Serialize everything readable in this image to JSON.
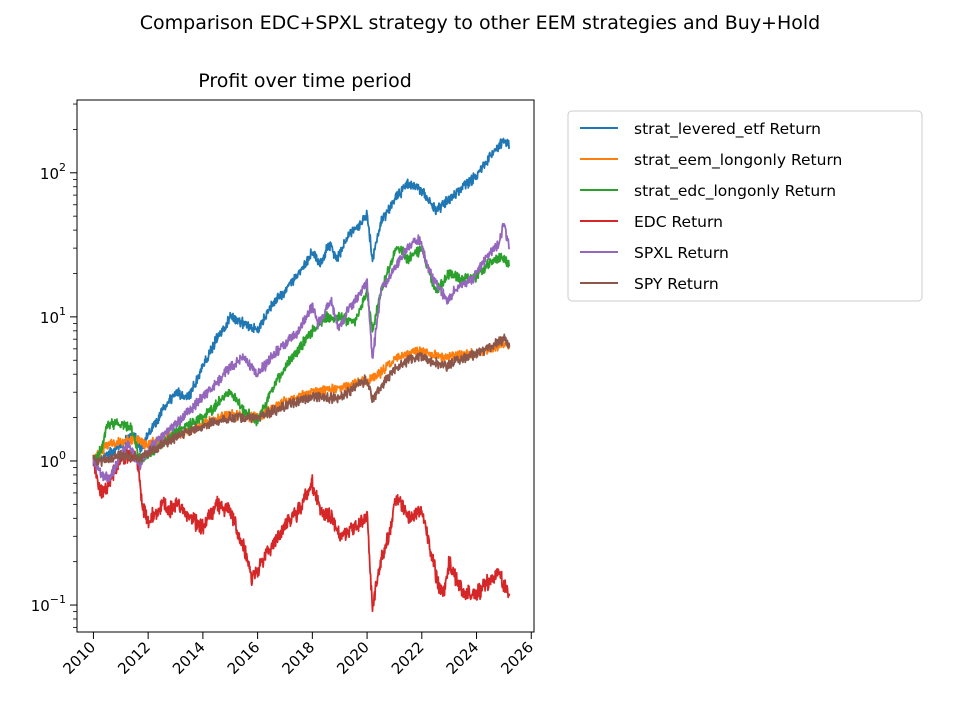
{
  "suptitle": "Comparison EDC+SPXL strategy to other EEM strategies and Buy+Hold",
  "chart_data": {
    "type": "line",
    "title": "Profit over time period",
    "xlabel": "",
    "ylabel": "",
    "yscale": "log",
    "xlim": [
      2009.4,
      2026.1
    ],
    "ylim": [
      0.065,
      320
    ],
    "x_ticks": [
      "2010",
      "2012",
      "2014",
      "2016",
      "2018",
      "2020",
      "2022",
      "2024",
      "2026"
    ],
    "x_tick_rotation": 45,
    "y_ticks": [
      {
        "value": 100,
        "base": "10",
        "exp": "2"
      },
      {
        "value": 10,
        "base": "10",
        "exp": "1"
      },
      {
        "value": 1,
        "base": "10",
        "exp": "0"
      },
      {
        "value": 0.1,
        "base": "10",
        "exp": "−1"
      }
    ],
    "grid": false,
    "legend_position": "outside-right",
    "series": [
      {
        "name": "strat_levered_etf Return",
        "color": "#1f77b4",
        "x": [
          2010.0,
          2010.5,
          2011.0,
          2011.5,
          2011.7,
          2012.0,
          2012.5,
          2013.0,
          2013.5,
          2014.0,
          2014.5,
          2015.0,
          2015.5,
          2016.0,
          2016.5,
          2017.0,
          2017.5,
          2018.0,
          2018.3,
          2018.6,
          2018.9,
          2019.3,
          2019.8,
          2020.0,
          2020.2,
          2020.5,
          2021.0,
          2021.5,
          2022.0,
          2022.5,
          2023.0,
          2023.5,
          2024.0,
          2024.5,
          2025.0,
          2025.2
        ],
        "y": [
          1.0,
          1.1,
          1.3,
          1.5,
          1.2,
          1.5,
          2.2,
          3.0,
          2.8,
          4.5,
          7.0,
          10.0,
          9.0,
          8.0,
          12.0,
          15.0,
          20.0,
          28.0,
          23.0,
          32.0,
          25.0,
          36.0,
          45.0,
          52.0,
          25.0,
          45.0,
          65.0,
          85.0,
          75.0,
          55.0,
          65.0,
          80.0,
          95.0,
          130.0,
          170.0,
          150.0
        ]
      },
      {
        "name": "strat_eem_longonly Return",
        "color": "#ff7f0e",
        "x": [
          2010.0,
          2010.5,
          2011.0,
          2011.5,
          2012.0,
          2013.0,
          2014.0,
          2015.0,
          2016.0,
          2017.0,
          2018.0,
          2019.0,
          2020.0,
          2020.3,
          2021.0,
          2021.5,
          2022.0,
          2022.5,
          2023.0,
          2024.0,
          2025.0,
          2025.2
        ],
        "y": [
          1.0,
          1.3,
          1.35,
          1.4,
          1.3,
          1.5,
          1.8,
          2.1,
          2.0,
          2.6,
          3.0,
          3.2,
          3.6,
          3.8,
          5.0,
          5.6,
          5.8,
          5.4,
          5.3,
          5.6,
          6.5,
          6.3
        ]
      },
      {
        "name": "strat_edc_longonly Return",
        "color": "#2ca02c",
        "x": [
          2010.0,
          2010.3,
          2010.5,
          2011.0,
          2011.4,
          2011.7,
          2012.0,
          2012.5,
          2013.0,
          2014.0,
          2015.0,
          2015.5,
          2016.0,
          2016.5,
          2017.0,
          2017.5,
          2018.0,
          2018.5,
          2019.0,
          2019.5,
          2020.0,
          2020.2,
          2020.5,
          2021.0,
          2021.2,
          2021.5,
          2022.0,
          2022.5,
          2023.0,
          2023.5,
          2024.0,
          2024.5,
          2025.0,
          2025.2
        ],
        "y": [
          1.0,
          1.2,
          1.8,
          1.8,
          1.7,
          1.0,
          1.1,
          1.3,
          1.6,
          2.0,
          3.0,
          2.2,
          1.9,
          3.0,
          4.5,
          6.0,
          8.0,
          10.0,
          10.0,
          9.0,
          15.0,
          8.0,
          15.0,
          28.0,
          30.0,
          25.0,
          30.0,
          15.0,
          20.0,
          18.0,
          19.0,
          24.0,
          26.0,
          23.0
        ]
      },
      {
        "name": "EDC Return",
        "color": "#d62728",
        "x": [
          2010.0,
          2010.2,
          2010.4,
          2010.7,
          2011.0,
          2011.3,
          2011.6,
          2011.8,
          2012.0,
          2012.3,
          2012.5,
          2012.8,
          2013.0,
          2013.3,
          2013.5,
          2014.0,
          2014.5,
          2015.0,
          2015.5,
          2015.8,
          2016.0,
          2016.5,
          2017.0,
          2017.5,
          2018.0,
          2018.3,
          2018.7,
          2019.0,
          2019.5,
          2020.0,
          2020.2,
          2020.5,
          2020.8,
          2021.0,
          2021.2,
          2021.5,
          2022.0,
          2022.3,
          2022.6,
          2022.8,
          2023.0,
          2023.5,
          2024.0,
          2024.5,
          2024.8,
          2025.0,
          2025.2
        ],
        "y": [
          1.0,
          0.65,
          0.6,
          0.8,
          1.05,
          1.1,
          1.0,
          0.5,
          0.38,
          0.45,
          0.5,
          0.45,
          0.5,
          0.45,
          0.4,
          0.35,
          0.5,
          0.45,
          0.25,
          0.15,
          0.18,
          0.25,
          0.35,
          0.45,
          0.7,
          0.45,
          0.4,
          0.3,
          0.35,
          0.4,
          0.1,
          0.2,
          0.3,
          0.5,
          0.55,
          0.4,
          0.45,
          0.25,
          0.14,
          0.12,
          0.2,
          0.12,
          0.12,
          0.15,
          0.17,
          0.14,
          0.12
        ]
      },
      {
        "name": "SPXL Return",
        "color": "#9467bd",
        "x": [
          2010.0,
          2010.3,
          2010.6,
          2011.0,
          2011.3,
          2011.7,
          2012.0,
          2012.5,
          2013.0,
          2013.5,
          2014.0,
          2014.5,
          2015.0,
          2015.5,
          2015.8,
          2016.0,
          2016.5,
          2017.0,
          2017.5,
          2018.0,
          2018.2,
          2018.7,
          2018.95,
          2019.3,
          2019.8,
          2020.0,
          2020.2,
          2020.5,
          2021.0,
          2021.5,
          2021.9,
          2022.3,
          2022.7,
          2022.95,
          2023.3,
          2023.8,
          2024.0,
          2024.5,
          2024.8,
          2025.0,
          2025.2
        ],
        "y": [
          1.0,
          0.8,
          0.75,
          1.1,
          1.3,
          0.9,
          1.2,
          1.5,
          1.8,
          2.2,
          2.8,
          3.5,
          4.5,
          5.2,
          4.5,
          4.0,
          5.2,
          6.5,
          8.0,
          12.0,
          9.0,
          13.0,
          8.0,
          11.0,
          15.0,
          18.0,
          5.0,
          15.0,
          22.0,
          30.0,
          35.0,
          20.0,
          15.0,
          13.0,
          16.0,
          18.0,
          20.0,
          28.0,
          32.0,
          45.0,
          30.0
        ]
      },
      {
        "name": "SPY Return",
        "color": "#8c564b",
        "x": [
          2010.0,
          2010.5,
          2011.0,
          2011.7,
          2012.0,
          2013.0,
          2014.0,
          2015.0,
          2016.0,
          2017.0,
          2018.0,
          2018.95,
          2019.5,
          2020.0,
          2020.2,
          2020.6,
          2021.0,
          2021.5,
          2022.0,
          2022.8,
          2023.0,
          2024.0,
          2025.0,
          2025.2
        ],
        "y": [
          1.0,
          1.0,
          1.1,
          1.05,
          1.15,
          1.45,
          1.75,
          2.0,
          2.0,
          2.4,
          2.8,
          2.7,
          3.2,
          3.7,
          2.6,
          3.5,
          4.3,
          5.0,
          5.3,
          4.5,
          4.7,
          5.5,
          7.0,
          6.2
        ]
      }
    ]
  }
}
